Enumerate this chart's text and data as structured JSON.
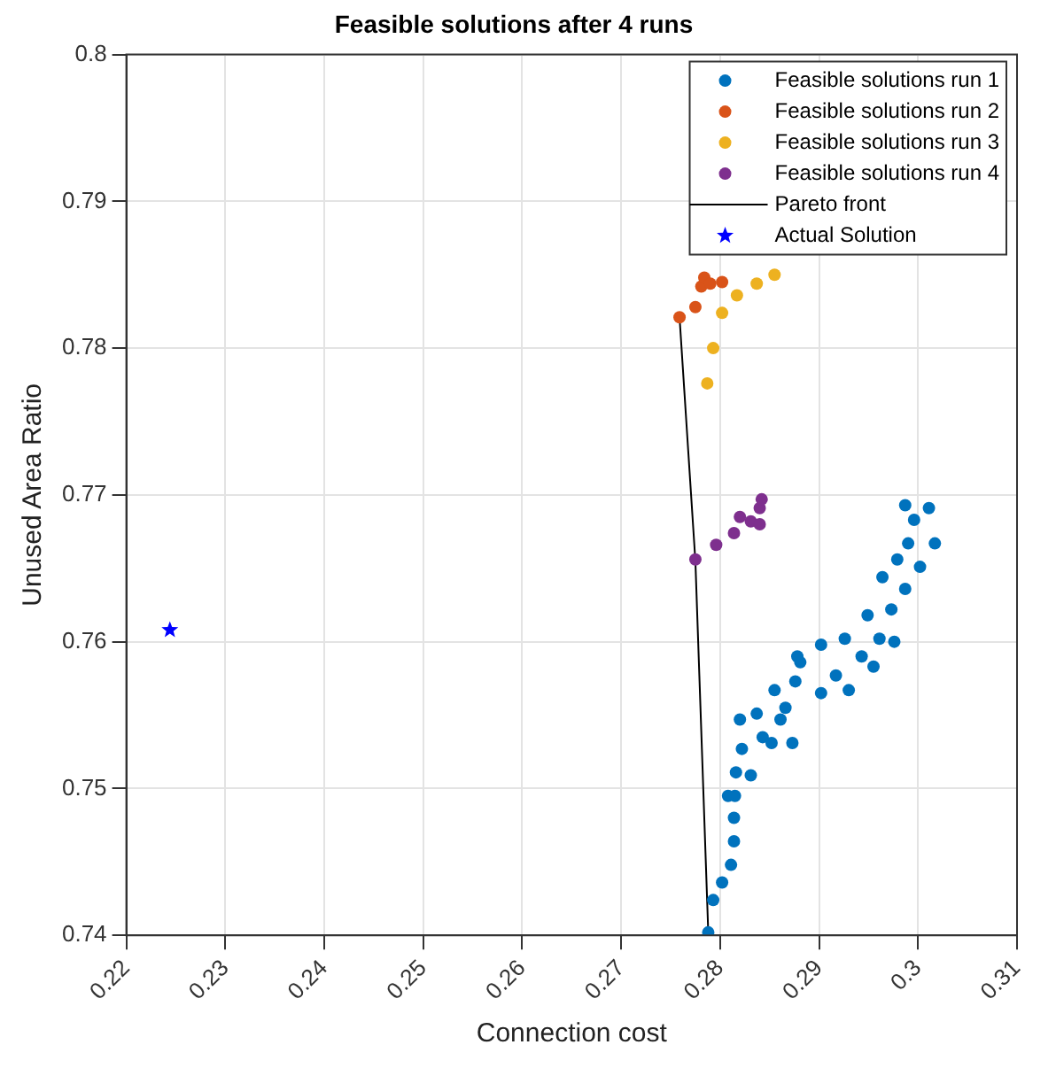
{
  "chart_data": {
    "type": "scatter",
    "title": "Feasible solutions after 4 runs",
    "xlabel": "Connection cost",
    "ylabel": "Unused Area Ratio",
    "xlim": [
      0.22,
      0.31
    ],
    "xticks": [
      0.22,
      0.23,
      0.24,
      0.25,
      0.26,
      0.27,
      0.28,
      0.29,
      0.3,
      0.31
    ],
    "ylim": [
      0.74,
      0.8
    ],
    "yticks": [
      0.74,
      0.75,
      0.76,
      0.77,
      0.78,
      0.79,
      0.8
    ],
    "grid": true,
    "legend": "top right",
    "marker": "circle",
    "series": [
      {
        "name": "Feasible solutions run 1",
        "color": "#0072bd",
        "x": [
          0.2788,
          0.2793,
          0.2802,
          0.2811,
          0.2814,
          0.2814,
          0.2815,
          0.2816,
          0.2831,
          0.2822,
          0.2843,
          0.2852,
          0.2873,
          0.2837,
          0.2866,
          0.2855,
          0.2876,
          0.2902,
          0.2881,
          0.2902,
          0.2878,
          0.2917,
          0.293,
          0.2926,
          0.2943,
          0.2955,
          0.2961,
          0.2976,
          0.2949,
          0.2973,
          0.2964,
          0.2987,
          0.2979,
          0.299,
          0.3002,
          0.3017,
          0.2987,
          0.2996,
          0.3011,
          0.2808,
          0.282,
          0.2861
        ],
        "values": [
          0.7402,
          0.7424,
          0.7436,
          0.7448,
          0.7464,
          0.748,
          0.7495,
          0.7511,
          0.7509,
          0.7527,
          0.7535,
          0.7531,
          0.7531,
          0.7551,
          0.7555,
          0.7567,
          0.7573,
          0.7565,
          0.7586,
          0.7598,
          0.759,
          0.7577,
          0.7567,
          0.7602,
          0.759,
          0.7583,
          0.7602,
          0.76,
          0.7618,
          0.7622,
          0.7644,
          0.7636,
          0.7656,
          0.7667,
          0.7651,
          0.7667,
          0.7693,
          0.7683,
          0.7691,
          0.7495,
          0.7547,
          0.7547
        ]
      },
      {
        "name": "Feasible solutions run 2",
        "color": "#d95319",
        "x": [
          0.2759,
          0.2775,
          0.2781,
          0.2784,
          0.279,
          0.2802
        ],
        "values": [
          0.7821,
          0.7828,
          0.7842,
          0.7848,
          0.7844,
          0.7845
        ]
      },
      {
        "name": "Feasible solutions run 3",
        "color": "#edb120",
        "x": [
          0.2787,
          0.2793,
          0.2802,
          0.2817,
          0.2837,
          0.2855
        ],
        "values": [
          0.7776,
          0.78,
          0.7824,
          0.7836,
          0.7844,
          0.785
        ]
      },
      {
        "name": "Feasible solutions run 4",
        "color": "#7e2f8e",
        "x": [
          0.2775,
          0.2796,
          0.2814,
          0.2831,
          0.284,
          0.284,
          0.2842,
          0.282
        ],
        "values": [
          0.7656,
          0.7666,
          0.7674,
          0.7682,
          0.768,
          0.7691,
          0.7697,
          0.7685
        ]
      },
      {
        "name": "Pareto front",
        "type": "line",
        "color": "#000000",
        "marker": "none",
        "line_style": "solid",
        "x": [
          0.2759,
          0.2775,
          0.2788
        ],
        "values": [
          0.7821,
          0.7655,
          0.7402
        ]
      },
      {
        "name": "Actual Solution",
        "color": "#0000ff",
        "marker": "star",
        "x": [
          0.2244
        ],
        "values": [
          0.7608
        ]
      }
    ]
  }
}
